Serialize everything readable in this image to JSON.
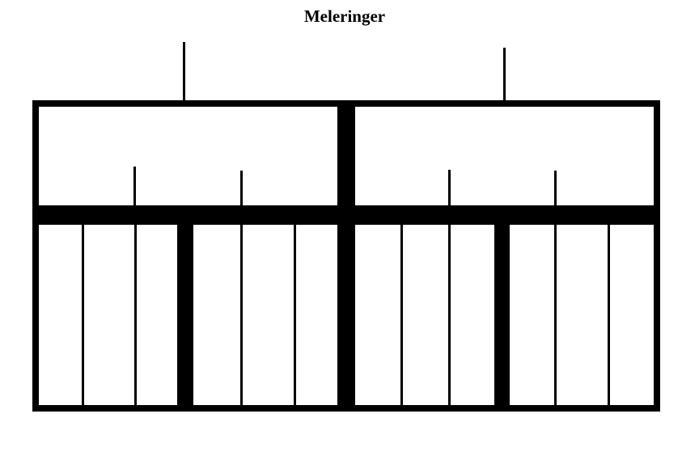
{
  "title": "Meleringer",
  "colors": {
    "line": "#000000",
    "background": "#ffffff"
  }
}
